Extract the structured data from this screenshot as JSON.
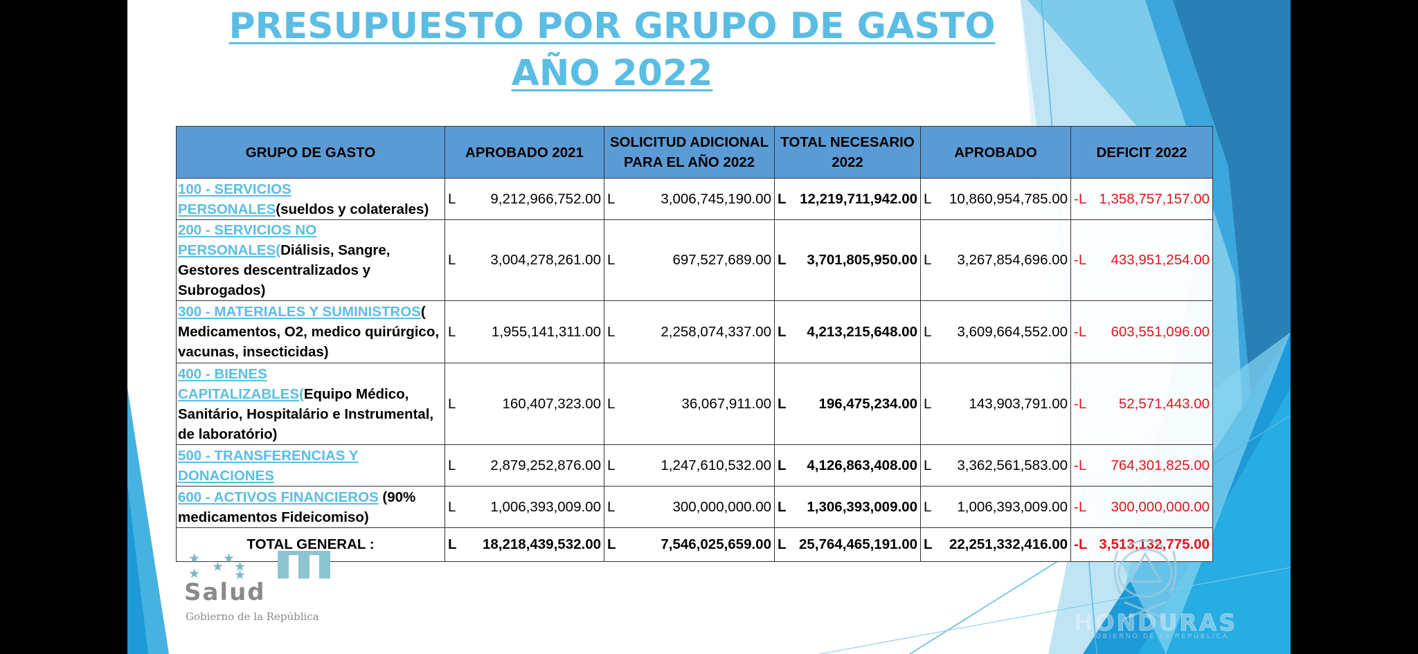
{
  "title": "PRESUPUESTO POR GRUPO DE GASTO AÑO 2022",
  "colors": {
    "title": "#5bbde3",
    "header_bg": "#5b9bd5",
    "deficit": "#e0151b",
    "accent_blue": "#1f9ad6"
  },
  "table": {
    "headers": {
      "group": "GRUPO DE GASTO",
      "approved_2021": "APROBADO 2021",
      "additional": "SOLICITUD ADICIONAL PARA EL AÑO 2022",
      "total_needed": "TOTAL NECESARIO 2022",
      "approved": "APROBADO",
      "deficit": "DEFICIT 2022"
    },
    "rows": [
      {
        "code": "100 - SERVICIOS PERSONALES",
        "paren": "",
        "desc": "(sueldos y colaterales)",
        "approved_2021": {
          "cur": "L",
          "val": "9,212,966,752.00"
        },
        "additional": {
          "cur": "L",
          "val": "3,006,745,190.00"
        },
        "total_needed": {
          "cur": "L",
          "val": "12,219,711,942.00"
        },
        "approved": {
          "cur": "L",
          "val": "10,860,954,785.00"
        },
        "deficit": {
          "cur": "-L",
          "val": "1,358,757,157.00"
        }
      },
      {
        "code": "200 - SERVICIOS NO PERSONALES",
        "paren": "(",
        "desc": "Diálisis, Sangre, Gestores descentralizados y Subrogados)",
        "approved_2021": {
          "cur": "L",
          "val": "3,004,278,261.00"
        },
        "additional": {
          "cur": "L",
          "val": "697,527,689.00"
        },
        "total_needed": {
          "cur": "L",
          "val": "3,701,805,950.00"
        },
        "approved": {
          "cur": "L",
          "val": "3,267,854,696.00"
        },
        "deficit": {
          "cur": "-L",
          "val": "433,951,254.00"
        }
      },
      {
        "code": "300 - MATERIALES Y SUMINISTROS",
        "paren": "",
        "desc": "( Medicamentos, O2, medico quirúrgico, vacunas, insecticidas)",
        "approved_2021": {
          "cur": "L",
          "val": "1,955,141,311.00"
        },
        "additional": {
          "cur": "L",
          "val": "2,258,074,337.00"
        },
        "total_needed": {
          "cur": "L",
          "val": "4,213,215,648.00"
        },
        "approved": {
          "cur": "L",
          "val": "3,609,664,552.00"
        },
        "deficit": {
          "cur": "-L",
          "val": "603,551,096.00"
        }
      },
      {
        "code": "400 - BIENES CAPITALIZABLES",
        "paren": "(",
        "desc": "Equipo Médico, Sanitário, Hospitalário e Instrumental, de laboratório)",
        "approved_2021": {
          "cur": "L",
          "val": "160,407,323.00"
        },
        "additional": {
          "cur": "L",
          "val": "36,067,911.00"
        },
        "total_needed": {
          "cur": "L",
          "val": "196,475,234.00"
        },
        "approved": {
          "cur": "L",
          "val": "143,903,791.00"
        },
        "deficit": {
          "cur": "-L",
          "val": "52,571,443.00"
        }
      },
      {
        "code": "500 - TRANSFERENCIAS Y DONACIONES",
        "paren": "",
        "desc": "",
        "approved_2021": {
          "cur": "L",
          "val": "2,879,252,876.00"
        },
        "additional": {
          "cur": "L",
          "val": "1,247,610,532.00"
        },
        "total_needed": {
          "cur": "L",
          "val": "4,126,863,408.00"
        },
        "approved": {
          "cur": "L",
          "val": "3,362,561,583.00"
        },
        "deficit": {
          "cur": "-L",
          "val": "764,301,825.00"
        }
      },
      {
        "code": "600 - ACTIVOS FINANCIEROS",
        "paren": "",
        "desc": " (90% medicamentos Fideicomiso)",
        "approved_2021": {
          "cur": "L",
          "val": "1,006,393,009.00"
        },
        "additional": {
          "cur": "L",
          "val": "300,000,000.00"
        },
        "total_needed": {
          "cur": "L",
          "val": "1,306,393,009.00"
        },
        "approved": {
          "cur": "L",
          "val": "1,006,393,009.00"
        },
        "deficit": {
          "cur": "-L",
          "val": "300,000,000.00"
        }
      }
    ],
    "total": {
      "label": "TOTAL GENERAL :",
      "approved_2021": {
        "cur": "L",
        "val": "18,218,439,532.00"
      },
      "additional": {
        "cur": "L",
        "val": "7,546,025,659.00"
      },
      "total_needed": {
        "cur": "L",
        "val": "25,764,465,191.00"
      },
      "approved": {
        "cur": "L",
        "val": "22,251,332,416.00"
      },
      "deficit": {
        "cur": "-L",
        "val": "3,513,132,775.00"
      }
    }
  },
  "logo_salud": {
    "word": "Salud",
    "subtitle": "Gobierno de la República"
  },
  "logo_honduras": {
    "word": "HONDURAS",
    "subtitle": "GOBIERNO DE LA REPÚBLICA"
  }
}
